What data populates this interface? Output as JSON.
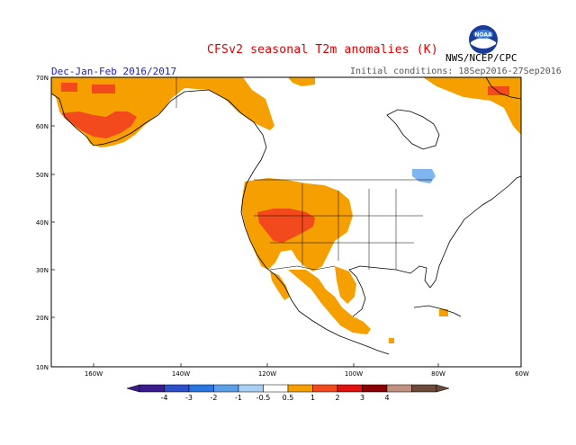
{
  "header": {
    "title": "CFSv2 seasonal T2m anomalies (K)",
    "period": "Dec-Jan-Feb 2016/2017",
    "initial_conditions": "Initial conditions: 18Sep2016-27Sep2016",
    "agency": "NWS/NCEP/CPC",
    "logo_text": "NOAA"
  },
  "map": {
    "lat_labels": [
      "70N",
      "60N",
      "50N",
      "40N",
      "30N",
      "20N",
      "10N"
    ],
    "lon_labels": [
      "160W",
      "140W",
      "120W",
      "100W",
      "80W",
      "60W"
    ]
  },
  "colorbar": {
    "labels": [
      "-4",
      "-3",
      "-2",
      "-1",
      "-0.5",
      "0.5",
      "1",
      "2",
      "3",
      "4"
    ],
    "colors": [
      "#3b1a8f",
      "#2f4fc8",
      "#2a76e0",
      "#5a9fe8",
      "#a9d0f2",
      "#ffffff",
      "#f59f00",
      "#f24a1c",
      "#e01010",
      "#8b0000",
      "#c09080",
      "#6b4a3a"
    ]
  },
  "anomaly_colors": {
    "warm_0_5_1": "#f59f00",
    "warm_1_2": "#f24a1c",
    "cool_neg_0_5": "#80b6ef"
  }
}
